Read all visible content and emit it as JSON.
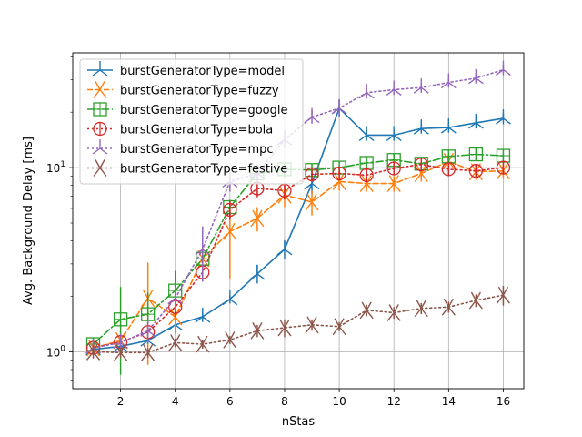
{
  "chart_data": {
    "type": "line",
    "title": "",
    "xlabel": "nStas",
    "ylabel": "Avg. Background Delay [ms]",
    "xlim": [
      0.25,
      16.75
    ],
    "ylim": [
      0.63,
      42
    ],
    "yscale": "log",
    "grid": true,
    "legend_position": "upper-left",
    "x_ticks": [
      2,
      4,
      6,
      8,
      10,
      12,
      14,
      16
    ],
    "y_ticks": [
      1,
      10
    ],
    "y_tick_labels": [
      "10^0",
      "10^1"
    ],
    "x": [
      1,
      2,
      3,
      4,
      5,
      6,
      7,
      8,
      9,
      10,
      11,
      12,
      13,
      14,
      15,
      16
    ],
    "series": [
      {
        "name": "burstGeneratorType=model",
        "color": "#1f77b4",
        "linestyle": "solid",
        "marker": "tri_down",
        "values": [
          1.03,
          1.07,
          1.15,
          1.4,
          1.55,
          1.93,
          2.65,
          3.6,
          8.2,
          21,
          15,
          15,
          16.3,
          16.5,
          17.5,
          18.5
        ],
        "err": [
          0.06,
          0.05,
          0.05,
          0.07,
          0.1,
          0.1,
          0.3,
          0.4,
          1,
          2,
          1,
          1,
          1,
          1,
          1.2,
          1.3
        ]
      },
      {
        "name": "burstGeneratorType=fuzzy",
        "color": "#ff7f0e",
        "linestyle": "dashed",
        "marker": "x-thin",
        "values": [
          1.05,
          1.15,
          1.95,
          1.55,
          3.2,
          4.5,
          5.3,
          7.1,
          6.5,
          8.4,
          8.2,
          8.2,
          9.3,
          10.8,
          9.5,
          9.6
        ],
        "err": [
          0.08,
          0.1,
          1.1,
          0.3,
          0.5,
          2,
          0.8,
          1,
          1,
          0.9,
          0.8,
          0.8,
          0.9,
          1,
          0.9,
          0.9
        ]
      },
      {
        "name": "burstGeneratorType=google",
        "color": "#2ca02c",
        "linestyle": "dashdot",
        "marker": "square-cross",
        "values": [
          1.1,
          1.5,
          1.6,
          2.15,
          3.2,
          6.1,
          9.3,
          9.8,
          9.7,
          10,
          10.6,
          11,
          10.5,
          11.5,
          11.8,
          11.6
        ],
        "err": [
          0.1,
          0.75,
          0.5,
          0.6,
          0.4,
          0.6,
          1,
          0.9,
          0.8,
          0.8,
          0.8,
          0.9,
          0.8,
          0.9,
          0.9,
          0.9
        ]
      },
      {
        "name": "burstGeneratorType=bola",
        "color": "#d62728",
        "linestyle": "dotted",
        "marker": "circle-bar",
        "values": [
          1.05,
          1.13,
          1.28,
          1.75,
          2.7,
          5.9,
          7.7,
          7.5,
          9.2,
          9.3,
          9.1,
          9.9,
          10.4,
          9.8,
          9.6,
          10
        ],
        "err": [
          0.07,
          0.08,
          0.1,
          0.15,
          0.3,
          0.7,
          0.8,
          0.8,
          0.8,
          0.8,
          0.8,
          0.8,
          0.8,
          0.8,
          0.8,
          0.8
        ]
      },
      {
        "name": "burstGeneratorType=mpc",
        "color": "#9467bd",
        "linestyle": "dotted",
        "marker": "tri_down",
        "values": [
          1.05,
          1.12,
          1.3,
          1.95,
          3.6,
          8.4,
          9.3,
          14.2,
          18.8,
          21,
          25.5,
          26.5,
          27.2,
          29,
          30.6,
          34
        ],
        "err": [
          0.06,
          0.08,
          0.2,
          0.3,
          1.2,
          1,
          1,
          1.4,
          1.5,
          2.2,
          1.8,
          1.7,
          1.7,
          1.8,
          2,
          2.2
        ]
      },
      {
        "name": "burstGeneratorType=festive",
        "color": "#8c564b",
        "linestyle": "dotted",
        "marker": "x-thin",
        "values": [
          1.0,
          0.99,
          0.99,
          1.12,
          1.1,
          1.16,
          1.3,
          1.35,
          1.4,
          1.37,
          1.68,
          1.63,
          1.72,
          1.75,
          1.9,
          2.03
        ],
        "err": [
          0.08,
          0.06,
          0.06,
          0.06,
          0.06,
          0.06,
          0.1,
          0.15,
          0.1,
          0.08,
          0.12,
          0.12,
          0.12,
          0.12,
          0.15,
          0.25
        ]
      }
    ]
  }
}
